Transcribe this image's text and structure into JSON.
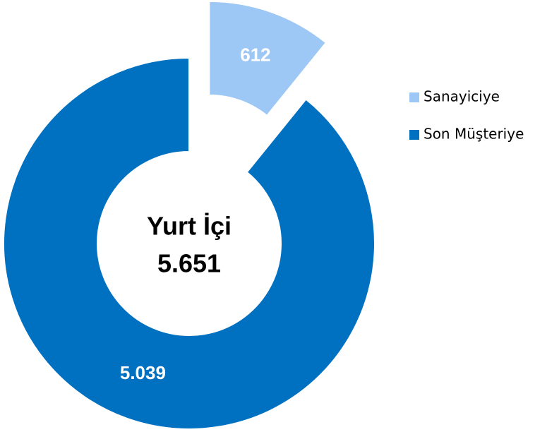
{
  "chart_data": {
    "type": "pie",
    "categories": [
      "Sanayiciye",
      "Son Müşteriye"
    ],
    "values": [
      612,
      5039
    ],
    "value_labels": [
      "612",
      "5.039"
    ],
    "colors": [
      "#9dc8f5",
      "#0070c0"
    ],
    "center_title": "Yurt İçi",
    "total": {
      "value": 5651,
      "label": "5.651"
    },
    "legend": "right"
  }
}
